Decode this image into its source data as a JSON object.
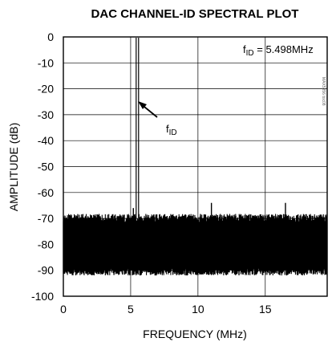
{
  "chart_data": {
    "type": "line",
    "title": "DAC CHANNEL-ID SPECTRAL PLOT",
    "xlabel": "FREQUENCY (MHz)",
    "ylabel": "AMPLITUDE (dB)",
    "xlim": [
      0,
      19.6
    ],
    "ylim": [
      -100,
      0
    ],
    "x_ticks": [
      0,
      5,
      10,
      15
    ],
    "y_ticks": [
      0,
      -10,
      -20,
      -30,
      -40,
      -50,
      -60,
      -70,
      -80,
      -90,
      -100
    ],
    "grid": true,
    "legend": "none",
    "tone_label": "f",
    "tone_label_sub": "ID",
    "tone_value_text": " = 5.498MHz",
    "part_number": "MAX5856 toc08",
    "series": [
      {
        "values": {
          "noise_floor_upper_db": -70,
          "noise_floor_lower_db": -89,
          "fundamental": {
            "x": 5.498,
            "y": 0
          },
          "spurs": [
            {
              "x": 11.0,
              "y": -64
            },
            {
              "x": 16.5,
              "y": -64
            },
            {
              "x": 5.2,
              "y": -66
            },
            {
              "x": 17.8,
              "y": -88
            },
            {
              "x": 12.2,
              "y": -90
            },
            {
              "x": 8.4,
              "y": -89
            }
          ]
        }
      }
    ]
  }
}
